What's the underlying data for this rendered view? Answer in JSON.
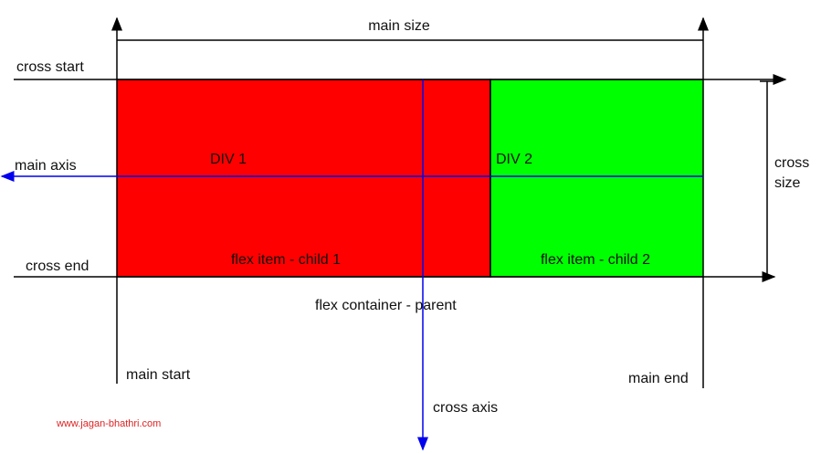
{
  "labels": {
    "main_size": "main size",
    "cross_start": "cross start",
    "main_axis": "main axis",
    "cross_end": "cross end",
    "div1": "DIV 1",
    "div2": "DIV 2",
    "child1": "flex item - child 1",
    "child2": "flex item - child 2",
    "cross_size": [
      "cross",
      "size"
    ],
    "parent": "flex container - parent",
    "main_start": "main start",
    "main_end": "main end",
    "cross_axis": "cross axis",
    "watermark": "www.jagan-bhathri.com"
  }
}
